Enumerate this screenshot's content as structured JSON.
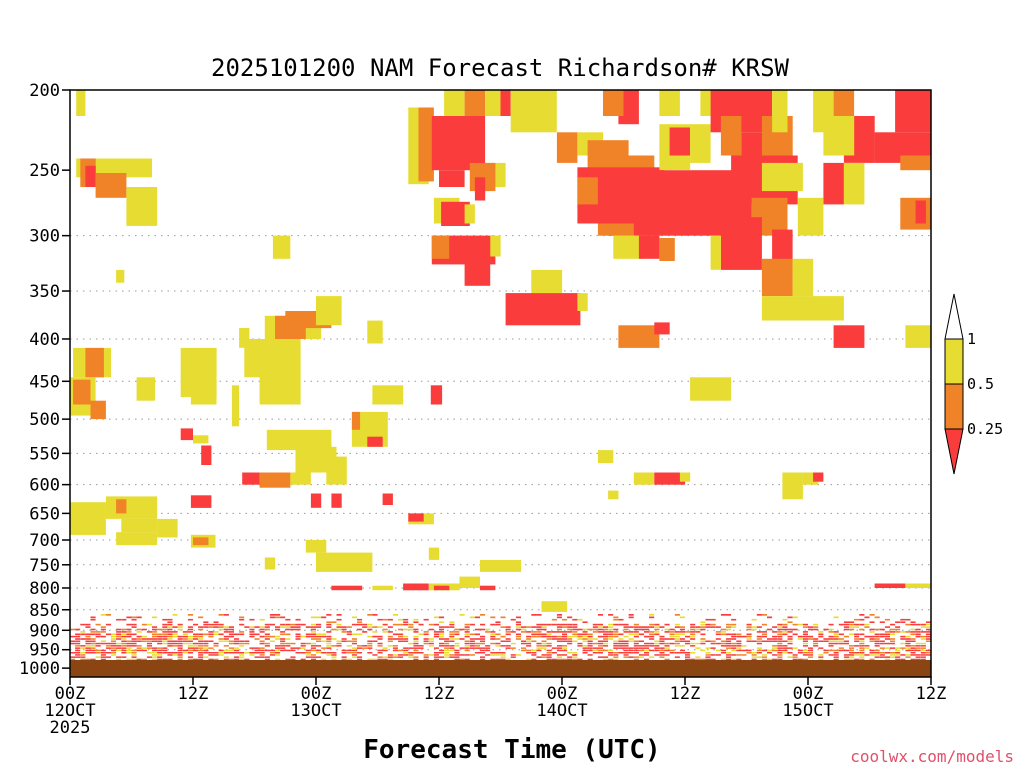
{
  "chart_data": {
    "type": "heatmap",
    "title": "2025101200 NAM Forecast Richardson# KRSW",
    "xlabel": "Forecast Time (UTC)",
    "ylabel": "",
    "credit": "coolwx.com/models",
    "x_range_hours": [
      0,
      84
    ],
    "x_ticks": [
      {
        "hour": 0,
        "lines": [
          "00Z",
          "12OCT",
          "2025"
        ]
      },
      {
        "hour": 12,
        "lines": [
          "12Z"
        ]
      },
      {
        "hour": 24,
        "lines": [
          "00Z",
          "13OCT"
        ]
      },
      {
        "hour": 36,
        "lines": [
          "12Z"
        ]
      },
      {
        "hour": 48,
        "lines": [
          "00Z",
          "14OCT"
        ]
      },
      {
        "hour": 60,
        "lines": [
          "12Z"
        ]
      },
      {
        "hour": 72,
        "lines": [
          "00Z",
          "15OCT"
        ]
      },
      {
        "hour": 84,
        "lines": [
          "12Z"
        ]
      }
    ],
    "y_range_hpa": [
      1025,
      200
    ],
    "y_ticks": [
      200,
      250,
      300,
      350,
      400,
      450,
      500,
      550,
      600,
      650,
      700,
      750,
      800,
      850,
      900,
      950,
      1000
    ],
    "grid_levels": [
      300,
      350,
      400,
      450,
      500,
      550,
      600,
      650,
      700,
      750,
      800,
      850,
      900,
      950
    ],
    "surface_color": "#8B4513",
    "legend": {
      "levels": [
        "1",
        "0.5",
        "0.25"
      ],
      "bins": [
        {
          "range": "> 1",
          "color": "#ffffff"
        },
        {
          "range": "0.5 - 1",
          "color": "#e6dc32"
        },
        {
          "range": "0.25 - 0.5",
          "color": "#f08228"
        },
        {
          "range": "< 0.25",
          "color": "#fa3c3c"
        }
      ]
    },
    "colors": {
      "y": "#e6dc32",
      "o": "#f08228",
      "r": "#fa3c3c"
    },
    "cells": [
      {
        "t0": 0.6,
        "t1": 1.5,
        "p0": 200,
        "p1": 215,
        "c": "y"
      },
      {
        "t0": 0.6,
        "t1": 8.0,
        "p0": 242,
        "p1": 255,
        "c": "y"
      },
      {
        "t0": 1.0,
        "t1": 2.5,
        "p0": 242,
        "p1": 262,
        "c": "o"
      },
      {
        "t0": 1.5,
        "t1": 2.5,
        "p0": 247,
        "p1": 262,
        "c": "r"
      },
      {
        "t0": 2.5,
        "t1": 5.5,
        "p0": 252,
        "p1": 270,
        "c": "o"
      },
      {
        "t0": 5.5,
        "t1": 8.5,
        "p0": 262,
        "p1": 292,
        "c": "y"
      },
      {
        "t0": 4.5,
        "t1": 5.3,
        "p0": 330,
        "p1": 342,
        "c": "y"
      },
      {
        "t0": 0.3,
        "t1": 4.0,
        "p0": 410,
        "p1": 445,
        "c": "y"
      },
      {
        "t0": 1.5,
        "t1": 3.3,
        "p0": 410,
        "p1": 445,
        "c": "o"
      },
      {
        "t0": 0.0,
        "t1": 2.5,
        "p0": 445,
        "p1": 495,
        "c": "y"
      },
      {
        "t0": 0.3,
        "t1": 2.0,
        "p0": 448,
        "p1": 480,
        "c": "o"
      },
      {
        "t0": 2.0,
        "t1": 3.5,
        "p0": 475,
        "p1": 500,
        "c": "o"
      },
      {
        "t0": 6.5,
        "t1": 8.3,
        "p0": 445,
        "p1": 475,
        "c": "y"
      },
      {
        "t0": 10.8,
        "t1": 14.3,
        "p0": 410,
        "p1": 470,
        "c": "y"
      },
      {
        "t0": 11.8,
        "t1": 14.3,
        "p0": 450,
        "p1": 480,
        "c": "y"
      },
      {
        "t0": 15.8,
        "t1": 16.5,
        "p0": 455,
        "p1": 510,
        "c": "y"
      },
      {
        "t0": 16.5,
        "t1": 17.5,
        "p0": 388,
        "p1": 410,
        "c": "y"
      },
      {
        "t0": 17.0,
        "t1": 19.5,
        "p0": 400,
        "p1": 445,
        "c": "y"
      },
      {
        "t0": 19.0,
        "t1": 24.5,
        "p0": 375,
        "p1": 400,
        "c": "y"
      },
      {
        "t0": 18.5,
        "t1": 22.5,
        "p0": 400,
        "p1": 480,
        "c": "y"
      },
      {
        "t0": 20.0,
        "t1": 23.0,
        "p0": 375,
        "p1": 400,
        "c": "o"
      },
      {
        "t0": 21.0,
        "t1": 25.5,
        "p0": 370,
        "p1": 388,
        "c": "o"
      },
      {
        "t0": 24.0,
        "t1": 26.5,
        "p0": 355,
        "p1": 385,
        "c": "y"
      },
      {
        "t0": 19.8,
        "t1": 21.5,
        "p0": 300,
        "p1": 320,
        "c": "y"
      },
      {
        "t0": 29.0,
        "t1": 30.5,
        "p0": 380,
        "p1": 405,
        "c": "y"
      },
      {
        "t0": 0.0,
        "t1": 3.5,
        "p0": 630,
        "p1": 690,
        "c": "y"
      },
      {
        "t0": 3.5,
        "t1": 8.5,
        "p0": 620,
        "p1": 660,
        "c": "y"
      },
      {
        "t0": 4.5,
        "t1": 5.5,
        "p0": 625,
        "p1": 650,
        "c": "o"
      },
      {
        "t0": 5.0,
        "t1": 8.5,
        "p0": 660,
        "p1": 685,
        "c": "y"
      },
      {
        "t0": 8.5,
        "t1": 10.5,
        "p0": 660,
        "p1": 695,
        "c": "y"
      },
      {
        "t0": 4.5,
        "t1": 8.5,
        "p0": 685,
        "p1": 710,
        "c": "y"
      },
      {
        "t0": 11.8,
        "t1": 14.2,
        "p0": 690,
        "p1": 715,
        "c": "y"
      },
      {
        "t0": 12.0,
        "t1": 13.5,
        "p0": 695,
        "p1": 710,
        "c": "o"
      },
      {
        "t0": 10.8,
        "t1": 12.0,
        "p0": 513,
        "p1": 530,
        "c": "r"
      },
      {
        "t0": 12.0,
        "t1": 13.5,
        "p0": 523,
        "p1": 535,
        "c": "y"
      },
      {
        "t0": 12.8,
        "t1": 13.8,
        "p0": 538,
        "p1": 568,
        "c": "r"
      },
      {
        "t0": 16.8,
        "t1": 18.5,
        "p0": 580,
        "p1": 600,
        "c": "r"
      },
      {
        "t0": 18.5,
        "t1": 21.5,
        "p0": 580,
        "p1": 605,
        "c": "o"
      },
      {
        "t0": 21.5,
        "t1": 23.5,
        "p0": 580,
        "p1": 600,
        "c": "y"
      },
      {
        "t0": 11.8,
        "t1": 13.8,
        "p0": 618,
        "p1": 640,
        "c": "r"
      },
      {
        "t0": 19.2,
        "t1": 25.5,
        "p0": 515,
        "p1": 545,
        "c": "y"
      },
      {
        "t0": 22.0,
        "t1": 26.0,
        "p0": 540,
        "p1": 580,
        "c": "y"
      },
      {
        "t0": 25.0,
        "t1": 27.0,
        "p0": 555,
        "p1": 600,
        "c": "y"
      },
      {
        "t0": 27.5,
        "t1": 31.0,
        "p0": 490,
        "p1": 540,
        "c": "y"
      },
      {
        "t0": 27.5,
        "t1": 28.3,
        "p0": 490,
        "p1": 515,
        "c": "o"
      },
      {
        "t0": 29.0,
        "t1": 30.5,
        "p0": 525,
        "p1": 540,
        "c": "r"
      },
      {
        "t0": 29.5,
        "t1": 32.5,
        "p0": 455,
        "p1": 480,
        "c": "y"
      },
      {
        "t0": 23.5,
        "t1": 24.5,
        "p0": 615,
        "p1": 640,
        "c": "r"
      },
      {
        "t0": 25.5,
        "t1": 26.5,
        "p0": 615,
        "p1": 640,
        "c": "r"
      },
      {
        "t0": 30.5,
        "t1": 31.5,
        "p0": 615,
        "p1": 635,
        "c": "r"
      },
      {
        "t0": 23.0,
        "t1": 25.0,
        "p0": 700,
        "p1": 725,
        "c": "y"
      },
      {
        "t0": 24.0,
        "t1": 29.5,
        "p0": 725,
        "p1": 765,
        "c": "y"
      },
      {
        "t0": 19.0,
        "t1": 20.0,
        "p0": 735,
        "p1": 760,
        "c": "y"
      },
      {
        "t0": 33.0,
        "t1": 35.5,
        "p0": 650,
        "p1": 670,
        "c": "y"
      },
      {
        "t0": 33.0,
        "t1": 34.5,
        "p0": 650,
        "p1": 665,
        "c": "r"
      },
      {
        "t0": 35.0,
        "t1": 36.0,
        "p0": 715,
        "p1": 740,
        "c": "y"
      },
      {
        "t0": 35.2,
        "t1": 36.3,
        "p0": 455,
        "p1": 480,
        "c": "r"
      },
      {
        "t0": 33.0,
        "t1": 35.0,
        "p0": 210,
        "p1": 260,
        "c": "y"
      },
      {
        "t0": 34.0,
        "t1": 35.5,
        "p0": 210,
        "p1": 258,
        "c": "o"
      },
      {
        "t0": 35.3,
        "t1": 40.5,
        "p0": 215,
        "p1": 250,
        "c": "r"
      },
      {
        "t0": 36.0,
        "t1": 38.5,
        "p0": 250,
        "p1": 262,
        "c": "r"
      },
      {
        "t0": 36.5,
        "t1": 38.5,
        "p0": 200,
        "p1": 215,
        "c": "y"
      },
      {
        "t0": 38.5,
        "t1": 40.5,
        "p0": 200,
        "p1": 215,
        "c": "o"
      },
      {
        "t0": 40.5,
        "t1": 42.0,
        "p0": 200,
        "p1": 215,
        "c": "y"
      },
      {
        "t0": 42.0,
        "t1": 43.0,
        "p0": 200,
        "p1": 215,
        "c": "r"
      },
      {
        "t0": 43.0,
        "t1": 47.5,
        "p0": 200,
        "p1": 225,
        "c": "y"
      },
      {
        "t0": 40.5,
        "t1": 42.5,
        "p0": 245,
        "p1": 262,
        "c": "y"
      },
      {
        "t0": 39.0,
        "t1": 41.5,
        "p0": 245,
        "p1": 265,
        "c": "o"
      },
      {
        "t0": 39.5,
        "t1": 40.5,
        "p0": 255,
        "p1": 272,
        "c": "r"
      },
      {
        "t0": 35.5,
        "t1": 38.0,
        "p0": 270,
        "p1": 290,
        "c": "y"
      },
      {
        "t0": 36.2,
        "t1": 39.0,
        "p0": 273,
        "p1": 292,
        "c": "r"
      },
      {
        "t0": 38.5,
        "t1": 39.5,
        "p0": 275,
        "p1": 290,
        "c": "y"
      },
      {
        "t0": 35.3,
        "t1": 41.5,
        "p0": 300,
        "p1": 325,
        "c": "r"
      },
      {
        "t0": 35.3,
        "t1": 37.0,
        "p0": 300,
        "p1": 320,
        "c": "o"
      },
      {
        "t0": 41.0,
        "t1": 42.0,
        "p0": 300,
        "p1": 318,
        "c": "y"
      },
      {
        "t0": 38.5,
        "t1": 41.0,
        "p0": 320,
        "p1": 345,
        "c": "r"
      },
      {
        "t0": 45.0,
        "t1": 48.0,
        "p0": 330,
        "p1": 352,
        "c": "y"
      },
      {
        "t0": 42.5,
        "t1": 49.8,
        "p0": 352,
        "p1": 385,
        "c": "r"
      },
      {
        "t0": 49.5,
        "t1": 50.5,
        "p0": 352,
        "p1": 370,
        "c": "y"
      },
      {
        "t0": 47.5,
        "t1": 49.5,
        "p0": 225,
        "p1": 245,
        "c": "o"
      },
      {
        "t0": 49.5,
        "t1": 52.0,
        "p0": 225,
        "p1": 240,
        "c": "y"
      },
      {
        "t0": 50.5,
        "t1": 54.5,
        "p0": 230,
        "p1": 250,
        "c": "o"
      },
      {
        "t0": 52.0,
        "t1": 57.0,
        "p0": 240,
        "p1": 255,
        "c": "o"
      },
      {
        "t0": 49.5,
        "t1": 58.0,
        "p0": 248,
        "p1": 290,
        "c": "r"
      },
      {
        "t0": 52.5,
        "t1": 66.5,
        "p0": 250,
        "p1": 300,
        "c": "r"
      },
      {
        "t0": 49.5,
        "t1": 51.5,
        "p0": 255,
        "p1": 275,
        "c": "o"
      },
      {
        "t0": 51.5,
        "t1": 55.0,
        "p0": 290,
        "p1": 300,
        "c": "o"
      },
      {
        "t0": 53.0,
        "t1": 56.0,
        "p0": 300,
        "p1": 320,
        "c": "y"
      },
      {
        "t0": 55.5,
        "t1": 57.5,
        "p0": 300,
        "p1": 320,
        "c": "r"
      },
      {
        "t0": 57.5,
        "t1": 59.0,
        "p0": 302,
        "p1": 322,
        "c": "o"
      },
      {
        "t0": 53.5,
        "t1": 55.5,
        "p0": 200,
        "p1": 220,
        "c": "r"
      },
      {
        "t0": 52.0,
        "t1": 54.0,
        "p0": 200,
        "p1": 215,
        "c": "o"
      },
      {
        "t0": 57.5,
        "t1": 59.5,
        "p0": 200,
        "p1": 215,
        "c": "y"
      },
      {
        "t0": 57.5,
        "t1": 60.5,
        "p0": 220,
        "p1": 250,
        "c": "y"
      },
      {
        "t0": 58.5,
        "t1": 60.5,
        "p0": 222,
        "p1": 240,
        "c": "r"
      },
      {
        "t0": 60.5,
        "t1": 62.5,
        "p0": 220,
        "p1": 245,
        "c": "y"
      },
      {
        "t0": 61.5,
        "t1": 66.5,
        "p0": 200,
        "p1": 215,
        "c": "y"
      },
      {
        "t0": 62.5,
        "t1": 68.5,
        "p0": 200,
        "p1": 225,
        "c": "r"
      },
      {
        "t0": 63.5,
        "t1": 65.5,
        "p0": 215,
        "p1": 240,
        "c": "o"
      },
      {
        "t0": 65.5,
        "t1": 68.0,
        "p0": 225,
        "p1": 245,
        "c": "r"
      },
      {
        "t0": 67.5,
        "t1": 70.5,
        "p0": 215,
        "p1": 240,
        "c": "o"
      },
      {
        "t0": 68.5,
        "t1": 70.0,
        "p0": 200,
        "p1": 225,
        "c": "y"
      },
      {
        "t0": 64.5,
        "t1": 71.0,
        "p0": 240,
        "p1": 275,
        "c": "r"
      },
      {
        "t0": 67.5,
        "t1": 71.5,
        "p0": 245,
        "p1": 265,
        "c": "y"
      },
      {
        "t0": 66.5,
        "t1": 70.0,
        "p0": 270,
        "p1": 300,
        "c": "o"
      },
      {
        "t0": 63.5,
        "t1": 67.5,
        "p0": 285,
        "p1": 330,
        "c": "r"
      },
      {
        "t0": 62.5,
        "t1": 63.5,
        "p0": 300,
        "p1": 330,
        "c": "y"
      },
      {
        "t0": 68.5,
        "t1": 70.5,
        "p0": 295,
        "p1": 330,
        "c": "r"
      },
      {
        "t0": 67.5,
        "t1": 70.5,
        "p0": 320,
        "p1": 355,
        "c": "o"
      },
      {
        "t0": 70.5,
        "t1": 72.5,
        "p0": 320,
        "p1": 355,
        "c": "y"
      },
      {
        "t0": 72.5,
        "t1": 74.5,
        "p0": 200,
        "p1": 225,
        "c": "y"
      },
      {
        "t0": 74.5,
        "t1": 76.5,
        "p0": 200,
        "p1": 215,
        "c": "o"
      },
      {
        "t0": 75.5,
        "t1": 78.5,
        "p0": 215,
        "p1": 245,
        "c": "r"
      },
      {
        "t0": 73.5,
        "t1": 76.5,
        "p0": 215,
        "p1": 240,
        "c": "y"
      },
      {
        "t0": 78.5,
        "t1": 84.0,
        "p0": 225,
        "p1": 245,
        "c": "r"
      },
      {
        "t0": 80.5,
        "t1": 84.0,
        "p0": 200,
        "p1": 225,
        "c": "r"
      },
      {
        "t0": 81.0,
        "t1": 84.0,
        "p0": 240,
        "p1": 250,
        "c": "o"
      },
      {
        "t0": 73.5,
        "t1": 75.5,
        "p0": 245,
        "p1": 275,
        "c": "r"
      },
      {
        "t0": 75.5,
        "t1": 77.5,
        "p0": 245,
        "p1": 275,
        "c": "y"
      },
      {
        "t0": 71.0,
        "t1": 73.5,
        "p0": 270,
        "p1": 300,
        "c": "y"
      },
      {
        "t0": 81.0,
        "t1": 84.0,
        "p0": 270,
        "p1": 295,
        "c": "o"
      },
      {
        "t0": 82.5,
        "t1": 83.5,
        "p0": 272,
        "p1": 290,
        "c": "r"
      },
      {
        "t0": 67.5,
        "t1": 75.5,
        "p0": 355,
        "p1": 380,
        "c": "y"
      },
      {
        "t0": 74.5,
        "t1": 77.5,
        "p0": 385,
        "p1": 410,
        "c": "r"
      },
      {
        "t0": 81.5,
        "t1": 84.0,
        "p0": 385,
        "p1": 410,
        "c": "y"
      },
      {
        "t0": 53.5,
        "t1": 57.5,
        "p0": 385,
        "p1": 410,
        "c": "o"
      },
      {
        "t0": 57.0,
        "t1": 58.5,
        "p0": 382,
        "p1": 395,
        "c": "r"
      },
      {
        "t0": 60.5,
        "t1": 64.5,
        "p0": 445,
        "p1": 475,
        "c": "y"
      },
      {
        "t0": 55.0,
        "t1": 57.0,
        "p0": 580,
        "p1": 600,
        "c": "y"
      },
      {
        "t0": 57.0,
        "t1": 60.0,
        "p0": 580,
        "p1": 600,
        "c": "r"
      },
      {
        "t0": 59.5,
        "t1": 60.5,
        "p0": 580,
        "p1": 595,
        "c": "y"
      },
      {
        "t0": 51.5,
        "t1": 53.0,
        "p0": 545,
        "p1": 565,
        "c": "y"
      },
      {
        "t0": 52.5,
        "t1": 53.5,
        "p0": 610,
        "p1": 625,
        "c": "y"
      },
      {
        "t0": 69.5,
        "t1": 71.5,
        "p0": 580,
        "p1": 625,
        "c": "y"
      },
      {
        "t0": 71.5,
        "t1": 73.0,
        "p0": 580,
        "p1": 600,
        "c": "y"
      },
      {
        "t0": 72.5,
        "t1": 73.5,
        "p0": 580,
        "p1": 595,
        "c": "r"
      },
      {
        "t0": 40.0,
        "t1": 44.0,
        "p0": 740,
        "p1": 765,
        "c": "y"
      },
      {
        "t0": 46.0,
        "t1": 48.5,
        "p0": 830,
        "p1": 855,
        "c": "y"
      },
      {
        "t0": 38.0,
        "t1": 40.0,
        "p0": 775,
        "p1": 800,
        "c": "y"
      },
      {
        "t0": 35.0,
        "t1": 38.0,
        "p0": 790,
        "p1": 805,
        "c": "y"
      },
      {
        "t0": 32.5,
        "t1": 35.0,
        "p0": 790,
        "p1": 805,
        "c": "r"
      },
      {
        "t0": 35.5,
        "t1": 37.0,
        "p0": 795,
        "p1": 805,
        "c": "r"
      },
      {
        "t0": 40.0,
        "t1": 41.5,
        "p0": 795,
        "p1": 805,
        "c": "r"
      },
      {
        "t0": 29.5,
        "t1": 31.5,
        "p0": 795,
        "p1": 805,
        "c": "y"
      },
      {
        "t0": 25.5,
        "t1": 28.5,
        "p0": 795,
        "p1": 805,
        "c": "r"
      },
      {
        "t0": 78.5,
        "t1": 81.5,
        "p0": 790,
        "p1": 800,
        "c": "r"
      },
      {
        "t0": 81.5,
        "t1": 84.0,
        "p0": 790,
        "p1": 800,
        "c": "y"
      }
    ],
    "blgen": {
      "t0": 0.0,
      "t1": 84.0,
      "p0": 860,
      "p1": 1010,
      "dens": 0.55
    },
    "blanchors": [
      {
        "t0": 0.0,
        "t1": 14.0,
        "p0": 905,
        "p1": 960,
        "c": "r",
        "keep": 0.78
      },
      {
        "t0": 19.0,
        "t1": 30.0,
        "p0": 880,
        "p1": 950,
        "c": "r",
        "keep": 0.55
      },
      {
        "t0": 47.5,
        "t1": 60.0,
        "p0": 890,
        "p1": 960,
        "c": "r",
        "keep": 0.7
      },
      {
        "t0": 72.0,
        "t1": 82.0,
        "p0": 915,
        "p1": 975,
        "c": "r",
        "keep": 0.6
      }
    ]
  }
}
